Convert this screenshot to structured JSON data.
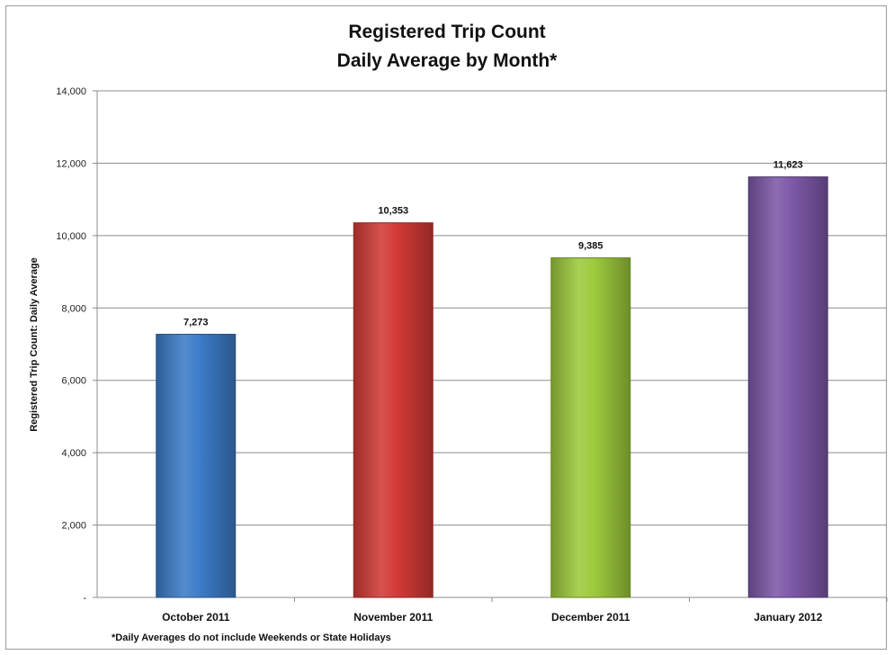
{
  "chart_data": {
    "type": "bar",
    "title": "Registered Trip Count",
    "subtitle": "Daily Average by Month*",
    "xlabel": "",
    "ylabel": "Registered Trip Count:  Daily Average",
    "categories": [
      "October 2011",
      "November 2011",
      "December 2011",
      "January 2012"
    ],
    "values": [
      7273,
      10353,
      9385,
      11623
    ],
    "value_labels": [
      "7,273",
      "10,353",
      "9,385",
      "11,623"
    ],
    "colors": [
      "#3d7cc9",
      "#d23a36",
      "#9dca3c",
      "#7d58a8"
    ],
    "ylim": [
      0,
      14000
    ],
    "yticks": [
      0,
      2000,
      4000,
      6000,
      8000,
      10000,
      12000,
      14000
    ],
    "ytick_labels": [
      "-",
      "2,000",
      "4,000",
      "6,000",
      "8,000",
      "10,000",
      "12,000",
      "14,000"
    ],
    "grid": true,
    "legend": "none",
    "footnote": "*Daily Averages do not include Weekends or State Holidays"
  }
}
